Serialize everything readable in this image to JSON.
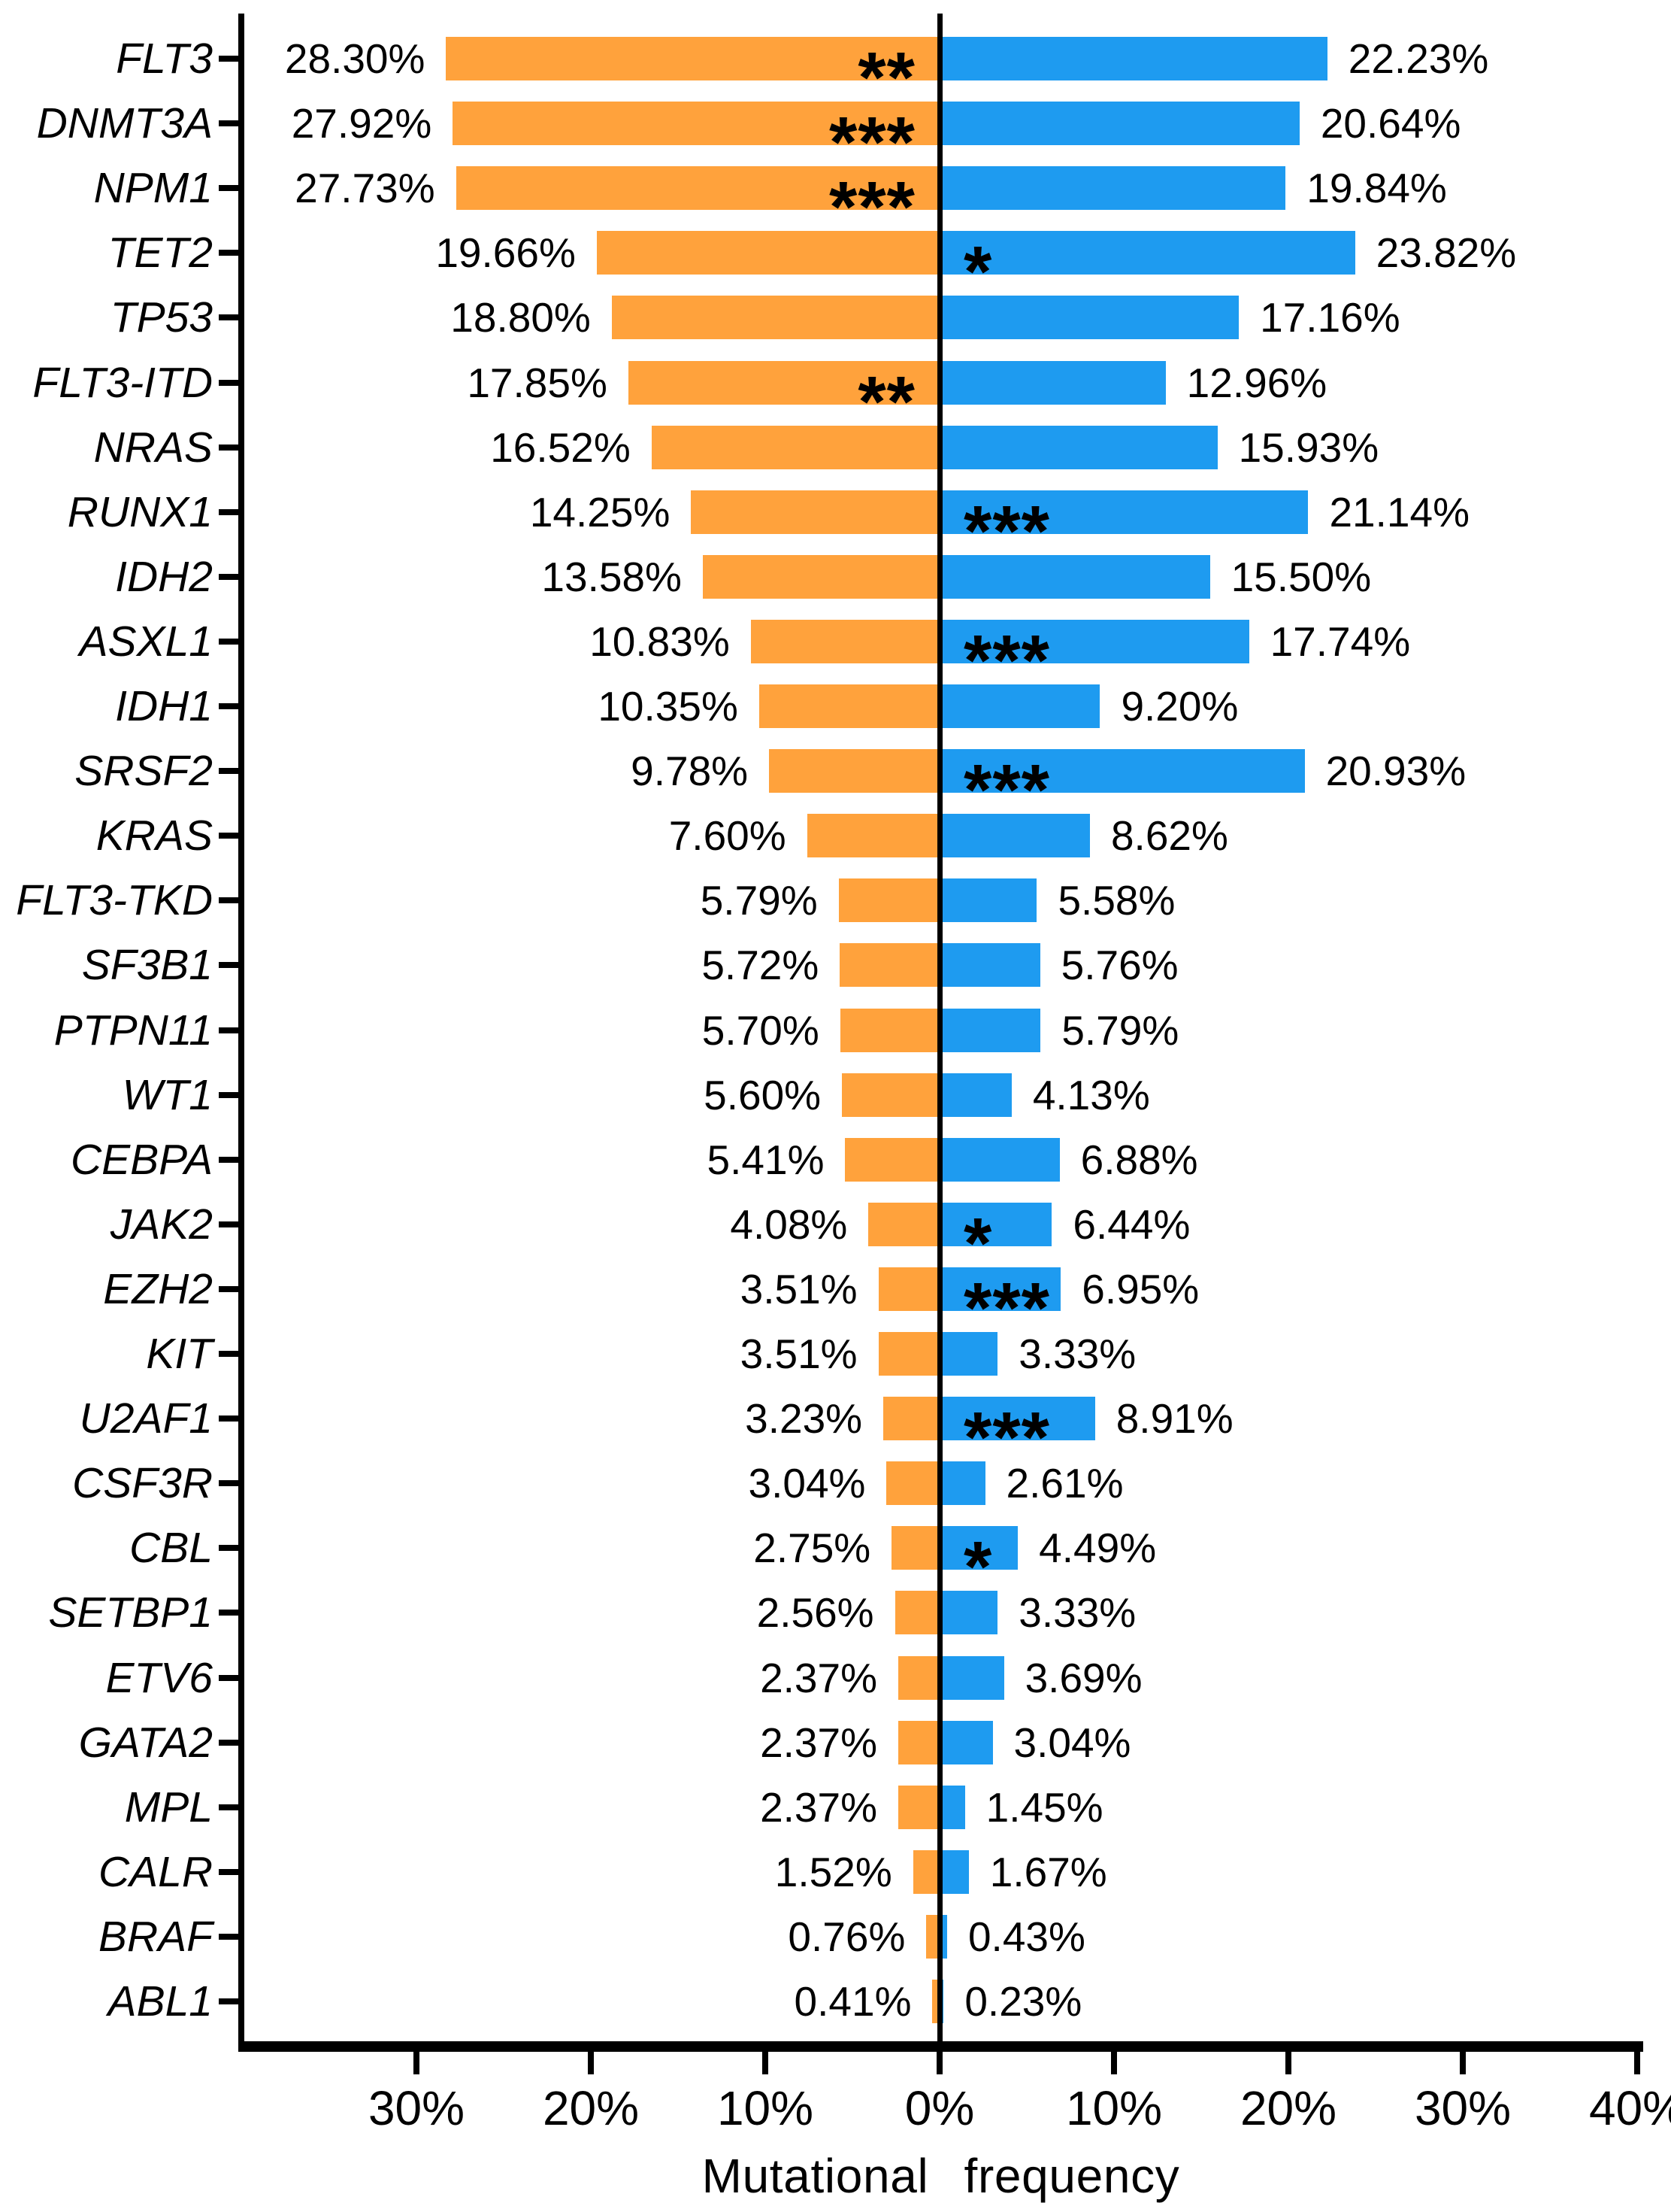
{
  "chart_data": {
    "type": "bar",
    "variant": "horizontal-diverging-tornado",
    "title": "",
    "xlabel": "Mutational  frequency",
    "ylabel": "",
    "xlim": [
      -40,
      40
    ],
    "grid": false,
    "legend": "none",
    "left_series_color": "#FFA23C",
    "right_series_color": "#1E9BF0",
    "zero_line_color": "#000000",
    "x_ticks": [
      {
        "value": -30,
        "label": "30%"
      },
      {
        "value": -20,
        "label": "20%"
      },
      {
        "value": -10,
        "label": "10%"
      },
      {
        "value": 0,
        "label": "0%"
      },
      {
        "value": 10,
        "label": "10%"
      },
      {
        "value": 20,
        "label": "20%"
      },
      {
        "value": 30,
        "label": "30%"
      },
      {
        "value": 40,
        "label": "40%"
      }
    ],
    "categories": [
      "FLT3",
      "DNMT3A",
      "NPM1",
      "TET2",
      "TP53",
      "FLT3-ITD",
      "NRAS",
      "RUNX1",
      "IDH2",
      "ASXL1",
      "IDH1",
      "SRSF2",
      "KRAS",
      "FLT3-TKD",
      "SF3B1",
      "PTPN11",
      "WT1",
      "CEBPA",
      "JAK2",
      "EZH2",
      "KIT",
      "U2AF1",
      "CSF3R",
      "CBL",
      "SETBP1",
      "ETV6",
      "GATA2",
      "MPL",
      "CALR",
      "BRAF",
      "ABL1"
    ],
    "series": [
      {
        "name": "left-orange",
        "values": [
          28.3,
          27.92,
          27.73,
          19.66,
          18.8,
          17.85,
          16.52,
          14.25,
          13.58,
          10.83,
          10.35,
          9.78,
          7.6,
          5.79,
          5.72,
          5.7,
          5.6,
          5.41,
          4.08,
          3.51,
          3.51,
          3.23,
          3.04,
          2.75,
          2.56,
          2.37,
          2.37,
          2.37,
          1.52,
          0.76,
          0.41
        ]
      },
      {
        "name": "right-blue",
        "values": [
          22.23,
          20.64,
          19.84,
          23.82,
          17.16,
          12.96,
          15.93,
          21.14,
          15.5,
          17.74,
          9.2,
          20.93,
          8.62,
          5.58,
          5.76,
          5.79,
          4.13,
          6.88,
          6.44,
          6.95,
          3.33,
          8.91,
          2.61,
          4.49,
          3.33,
          3.69,
          3.04,
          1.45,
          1.67,
          0.43,
          0.23
        ]
      }
    ],
    "rows": [
      {
        "gene": "FLT3",
        "left_label": "28.30%",
        "left_value": 28.3,
        "right_label": "22.23%",
        "right_value": 22.23,
        "stars": "**",
        "stars_side": "left"
      },
      {
        "gene": "DNMT3A",
        "left_label": "27.92%",
        "left_value": 27.92,
        "right_label": "20.64%",
        "right_value": 20.64,
        "stars": "***",
        "stars_side": "left"
      },
      {
        "gene": "NPM1",
        "left_label": "27.73%",
        "left_value": 27.73,
        "right_label": "19.84%",
        "right_value": 19.84,
        "stars": "***",
        "stars_side": "left"
      },
      {
        "gene": "TET2",
        "left_label": "19.66%",
        "left_value": 19.66,
        "right_label": "23.82%",
        "right_value": 23.82,
        "stars": "*",
        "stars_side": "right"
      },
      {
        "gene": "TP53",
        "left_label": "18.80%",
        "left_value": 18.8,
        "right_label": "17.16%",
        "right_value": 17.16,
        "stars": "",
        "stars_side": ""
      },
      {
        "gene": "FLT3-ITD",
        "left_label": "17.85%",
        "left_value": 17.85,
        "right_label": "12.96%",
        "right_value": 12.96,
        "stars": "**",
        "stars_side": "left"
      },
      {
        "gene": "NRAS",
        "left_label": "16.52%",
        "left_value": 16.52,
        "right_label": "15.93%",
        "right_value": 15.93,
        "stars": "",
        "stars_side": ""
      },
      {
        "gene": "RUNX1",
        "left_label": "14.25%",
        "left_value": 14.25,
        "right_label": "21.14%",
        "right_value": 21.14,
        "stars": "***",
        "stars_side": "right"
      },
      {
        "gene": "IDH2",
        "left_label": "13.58%",
        "left_value": 13.58,
        "right_label": "15.50%",
        "right_value": 15.5,
        "stars": "",
        "stars_side": ""
      },
      {
        "gene": "ASXL1",
        "left_label": "10.83%",
        "left_value": 10.83,
        "right_label": "17.74%",
        "right_value": 17.74,
        "stars": "***",
        "stars_side": "right"
      },
      {
        "gene": "IDH1",
        "left_label": "10.35%",
        "left_value": 10.35,
        "right_label": "9.20%",
        "right_value": 9.2,
        "stars": "",
        "stars_side": ""
      },
      {
        "gene": "SRSF2",
        "left_label": "9.78%",
        "left_value": 9.78,
        "right_label": "20.93%",
        "right_value": 20.93,
        "stars": "***",
        "stars_side": "right"
      },
      {
        "gene": "KRAS",
        "left_label": "7.60%",
        "left_value": 7.6,
        "right_label": "8.62%",
        "right_value": 8.62,
        "stars": "",
        "stars_side": ""
      },
      {
        "gene": "FLT3-TKD",
        "left_label": "5.79%",
        "left_value": 5.79,
        "right_label": "5.58%",
        "right_value": 5.58,
        "stars": "",
        "stars_side": ""
      },
      {
        "gene": "SF3B1",
        "left_label": "5.72%",
        "left_value": 5.72,
        "right_label": "5.76%",
        "right_value": 5.76,
        "stars": "",
        "stars_side": ""
      },
      {
        "gene": "PTPN11",
        "left_label": "5.70%",
        "left_value": 5.7,
        "right_label": "5.79%",
        "right_value": 5.79,
        "stars": "",
        "stars_side": ""
      },
      {
        "gene": "WT1",
        "left_label": "5.60%",
        "left_value": 5.6,
        "right_label": "4.13%",
        "right_value": 4.13,
        "stars": "",
        "stars_side": ""
      },
      {
        "gene": "CEBPA",
        "left_label": "5.41%",
        "left_value": 5.41,
        "right_label": "6.88%",
        "right_value": 6.88,
        "stars": "",
        "stars_side": ""
      },
      {
        "gene": "JAK2",
        "left_label": "4.08%",
        "left_value": 4.08,
        "right_label": "6.44%",
        "right_value": 6.44,
        "stars": "*",
        "stars_side": "right"
      },
      {
        "gene": "EZH2",
        "left_label": "3.51%",
        "left_value": 3.51,
        "right_label": "6.95%",
        "right_value": 6.95,
        "stars": "***",
        "stars_side": "right"
      },
      {
        "gene": "KIT",
        "left_label": "3.51%",
        "left_value": 3.51,
        "right_label": "3.33%",
        "right_value": 3.33,
        "stars": "",
        "stars_side": ""
      },
      {
        "gene": "U2AF1",
        "left_label": "3.23%",
        "left_value": 3.23,
        "right_label": "8.91%",
        "right_value": 8.91,
        "stars": "***",
        "stars_side": "right"
      },
      {
        "gene": "CSF3R",
        "left_label": "3.04%",
        "left_value": 3.04,
        "right_label": "2.61%",
        "right_value": 2.61,
        "stars": "",
        "stars_side": ""
      },
      {
        "gene": "CBL",
        "left_label": "2.75%",
        "left_value": 2.75,
        "right_label": "4.49%",
        "right_value": 4.49,
        "stars": "*",
        "stars_side": "right"
      },
      {
        "gene": "SETBP1",
        "left_label": "2.56%",
        "left_value": 2.56,
        "right_label": "3.33%",
        "right_value": 3.33,
        "stars": "",
        "stars_side": ""
      },
      {
        "gene": "ETV6",
        "left_label": "2.37%",
        "left_value": 2.37,
        "right_label": "3.69%",
        "right_value": 3.69,
        "stars": "",
        "stars_side": ""
      },
      {
        "gene": "GATA2",
        "left_label": "2.37%",
        "left_value": 2.37,
        "right_label": "3.04%",
        "right_value": 3.04,
        "stars": "",
        "stars_side": ""
      },
      {
        "gene": "MPL",
        "left_label": "2.37%",
        "left_value": 2.37,
        "right_label": "1.45%",
        "right_value": 1.45,
        "stars": "",
        "stars_side": ""
      },
      {
        "gene": "CALR",
        "left_label": "1.52%",
        "left_value": 1.52,
        "right_label": "1.67%",
        "right_value": 1.67,
        "stars": "",
        "stars_side": ""
      },
      {
        "gene": "BRAF",
        "left_label": "0.76%",
        "left_value": 0.76,
        "right_label": "0.43%",
        "right_value": 0.43,
        "stars": "",
        "stars_side": ""
      },
      {
        "gene": "ABL1",
        "left_label": "0.41%",
        "left_value": 0.41,
        "right_label": "0.23%",
        "right_value": 0.23,
        "stars": "",
        "stars_side": ""
      }
    ]
  }
}
